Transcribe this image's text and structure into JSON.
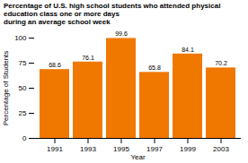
{
  "chart_data": {
    "type": "bar",
    "title": "Percentage of U.S. high school students who attended physical education class one or more days\nduring an average school week",
    "xlabel": "Year",
    "ylabel": "Percentage of Students",
    "categories": [
      "1991",
      "1993",
      "1995",
      "1997",
      "1999",
      "2003"
    ],
    "values": [
      68.6,
      76.1,
      99.6,
      65.8,
      84.1,
      70.2
    ],
    "color": "#F07800",
    "ylim": [
      0,
      100
    ],
    "yticks": [
      0,
      25,
      50,
      75,
      100
    ],
    "grid": false,
    "data_labels": true
  }
}
